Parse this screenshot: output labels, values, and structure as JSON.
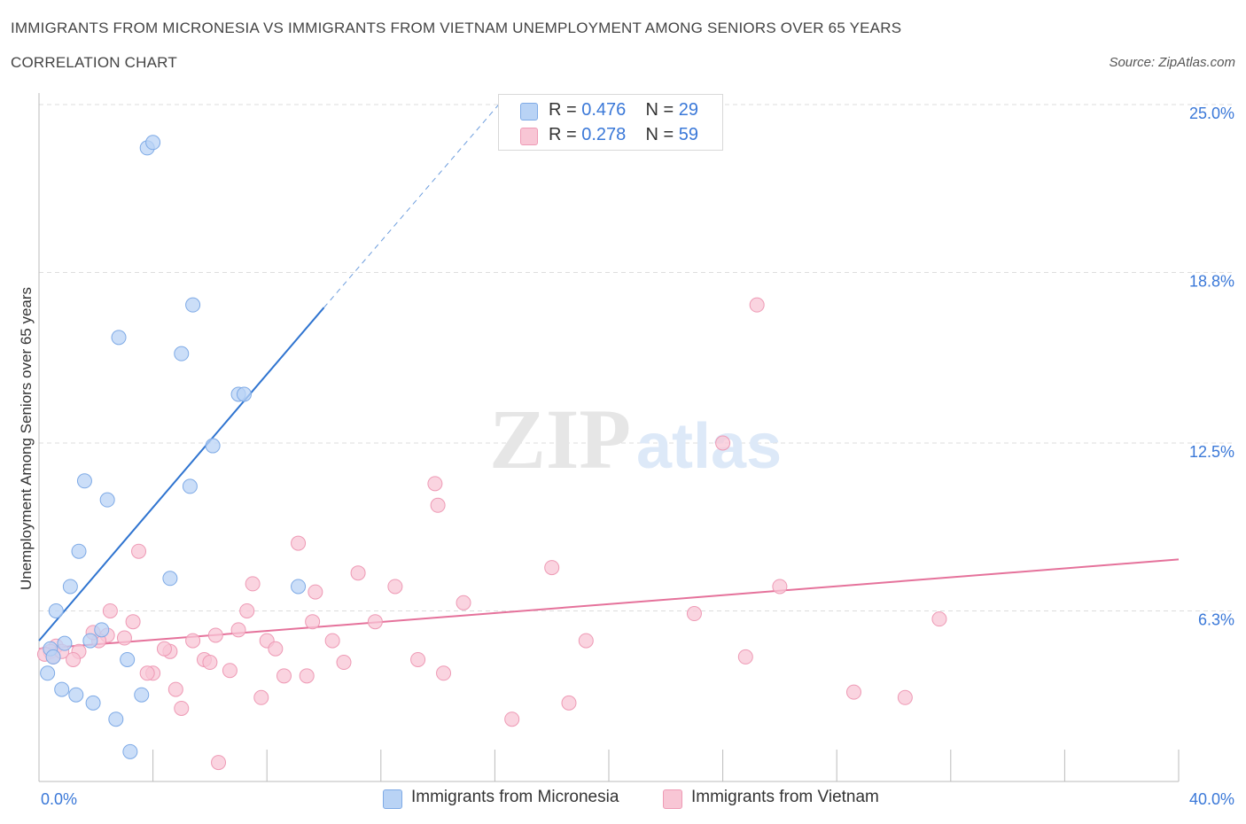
{
  "header": {
    "title": "IMMIGRANTS FROM MICRONESIA VS IMMIGRANTS FROM VIETNAM UNEMPLOYMENT AMONG SENIORS OVER 65 YEARS",
    "subtitle": "CORRELATION CHART",
    "source": "Source: ZipAtlas.com"
  },
  "legend": {
    "micronesia": {
      "r_label": "R = ",
      "r_value": "0.476",
      "n_label": "N = ",
      "n_value": "29"
    },
    "vietnam": {
      "r_label": "R = ",
      "r_value": "0.278",
      "n_label": "N = ",
      "n_value": "59"
    }
  },
  "watermark": {
    "zip": "ZIP",
    "atlas": "atlas"
  },
  "colors": {
    "micronesia_fill": "#b9d3f5",
    "micronesia_stroke": "#7eaae6",
    "micronesia_line": "#2f74d0",
    "vietnam_fill": "#f8c6d5",
    "vietnam_stroke": "#ee9ab5",
    "vietnam_line": "#e5729b",
    "tick_label": "#3a78d8",
    "grid": "#dddddd"
  },
  "chart_data": {
    "type": "scatter",
    "ylabel": "Unemployment Among Seniors over 65 years",
    "xlim": [
      0,
      40
    ],
    "ylim": [
      0,
      25
    ],
    "x_tick_labels": [
      "0.0%",
      "40.0%"
    ],
    "y_ticks": [
      6.3,
      12.5,
      18.8,
      25.0
    ],
    "y_tick_labels": [
      "6.3%",
      "12.5%",
      "18.8%",
      "25.0%"
    ],
    "grid": "horizontal dashed",
    "series": [
      {
        "name": "Immigrants from Micronesia",
        "points": [
          [
            3.8,
            23.4
          ],
          [
            4.0,
            23.6
          ],
          [
            5.4,
            17.6
          ],
          [
            2.8,
            16.4
          ],
          [
            5.0,
            15.8
          ],
          [
            7.0,
            14.3
          ],
          [
            7.2,
            14.3
          ],
          [
            6.1,
            12.4
          ],
          [
            5.3,
            10.9
          ],
          [
            1.6,
            11.1
          ],
          [
            2.4,
            10.4
          ],
          [
            1.4,
            8.5
          ],
          [
            4.6,
            7.5
          ],
          [
            1.1,
            7.2
          ],
          [
            9.1,
            7.2
          ],
          [
            0.6,
            6.3
          ],
          [
            2.2,
            5.6
          ],
          [
            1.8,
            5.2
          ],
          [
            0.9,
            5.1
          ],
          [
            0.4,
            4.9
          ],
          [
            0.5,
            4.6
          ],
          [
            3.1,
            4.5
          ],
          [
            0.3,
            4.0
          ],
          [
            0.8,
            3.4
          ],
          [
            1.3,
            3.2
          ],
          [
            3.6,
            3.2
          ],
          [
            1.9,
            2.9
          ],
          [
            2.7,
            2.3
          ],
          [
            3.2,
            1.1
          ]
        ],
        "trend": {
          "x": [
            0.0,
            10.0
          ],
          "y": [
            5.2,
            17.5
          ]
        },
        "trend_extension": {
          "x": [
            10.0,
            16.3
          ],
          "y": [
            17.5,
            25.2
          ]
        }
      },
      {
        "name": "Immigrants from Vietnam",
        "points": [
          [
            25.2,
            17.6
          ],
          [
            24.0,
            12.5
          ],
          [
            13.9,
            11.0
          ],
          [
            14.0,
            10.2
          ],
          [
            9.1,
            8.8
          ],
          [
            3.5,
            8.5
          ],
          [
            18.0,
            7.9
          ],
          [
            11.2,
            7.7
          ],
          [
            7.5,
            7.3
          ],
          [
            12.5,
            7.2
          ],
          [
            26.0,
            7.2
          ],
          [
            9.7,
            7.0
          ],
          [
            14.9,
            6.6
          ],
          [
            7.3,
            6.3
          ],
          [
            2.5,
            6.3
          ],
          [
            23.0,
            6.2
          ],
          [
            31.6,
            6.0
          ],
          [
            3.3,
            5.9
          ],
          [
            9.6,
            5.9
          ],
          [
            11.8,
            5.9
          ],
          [
            7.0,
            5.6
          ],
          [
            6.2,
            5.4
          ],
          [
            2.4,
            5.4
          ],
          [
            2.1,
            5.2
          ],
          [
            3.0,
            5.3
          ],
          [
            5.4,
            5.2
          ],
          [
            8.0,
            5.2
          ],
          [
            10.3,
            5.2
          ],
          [
            19.2,
            5.2
          ],
          [
            0.6,
            5.0
          ],
          [
            4.6,
            4.8
          ],
          [
            0.4,
            4.8
          ],
          [
            4.4,
            4.9
          ],
          [
            8.3,
            4.9
          ],
          [
            1.4,
            4.8
          ],
          [
            0.2,
            4.7
          ],
          [
            1.2,
            4.5
          ],
          [
            5.8,
            4.5
          ],
          [
            6.0,
            4.4
          ],
          [
            10.7,
            4.4
          ],
          [
            13.3,
            4.5
          ],
          [
            24.8,
            4.6
          ],
          [
            0.5,
            4.6
          ],
          [
            4.0,
            4.0
          ],
          [
            3.8,
            4.0
          ],
          [
            6.7,
            4.1
          ],
          [
            8.6,
            3.9
          ],
          [
            9.4,
            3.9
          ],
          [
            14.2,
            4.0
          ],
          [
            4.8,
            3.4
          ],
          [
            28.6,
            3.3
          ],
          [
            7.8,
            3.1
          ],
          [
            30.4,
            3.1
          ],
          [
            5.0,
            2.7
          ],
          [
            18.6,
            2.9
          ],
          [
            16.6,
            2.3
          ],
          [
            6.3,
            0.7
          ],
          [
            0.8,
            4.8
          ],
          [
            1.9,
            5.5
          ]
        ],
        "trend": {
          "x": [
            0.0,
            40.0
          ],
          "y": [
            4.9,
            8.2
          ]
        }
      }
    ]
  }
}
